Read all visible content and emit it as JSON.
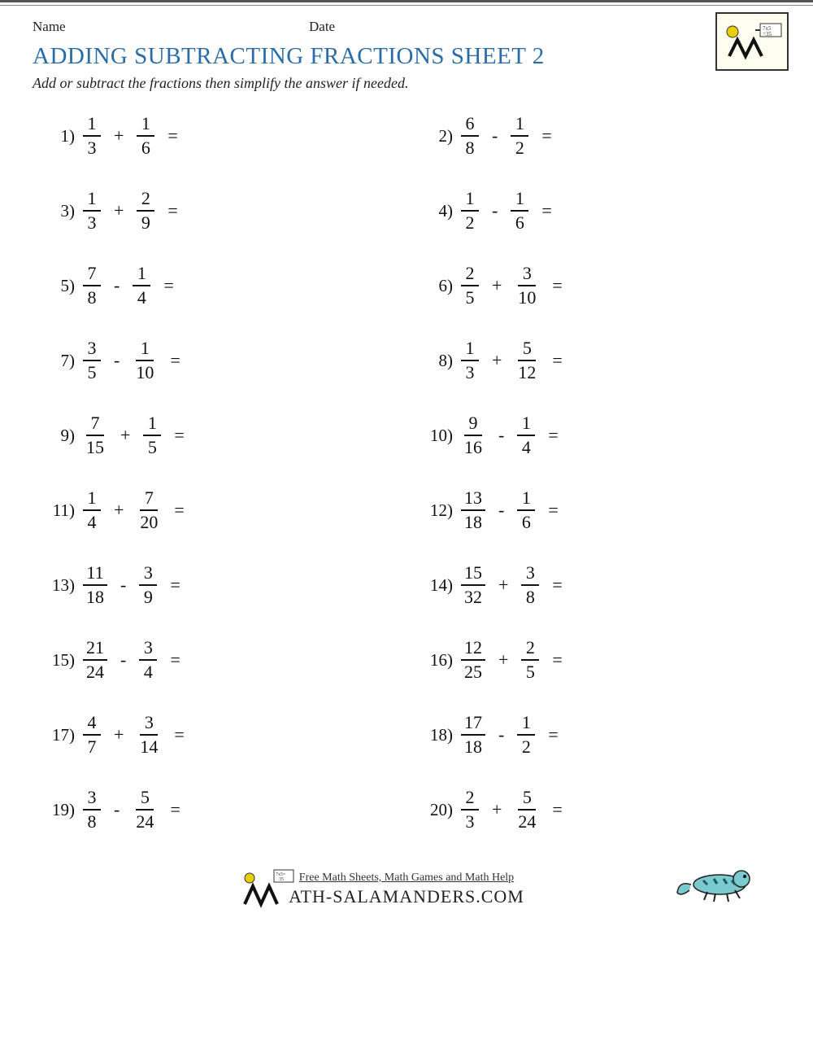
{
  "header": {
    "name_label": "Name",
    "date_label": "Date"
  },
  "title": "ADDING SUBTRACTING FRACTIONS SHEET 2",
  "instructions": "Add or subtract the fractions then simplify the answer if needed.",
  "problems": [
    {
      "n": "1)",
      "a_num": "1",
      "a_den": "3",
      "op": "+",
      "b_num": "1",
      "b_den": "6"
    },
    {
      "n": "2)",
      "a_num": "6",
      "a_den": "8",
      "op": "-",
      "b_num": "1",
      "b_den": "2"
    },
    {
      "n": "3)",
      "a_num": "1",
      "a_den": "3",
      "op": "+",
      "b_num": "2",
      "b_den": "9"
    },
    {
      "n": "4)",
      "a_num": "1",
      "a_den": "2",
      "op": "-",
      "b_num": "1",
      "b_den": "6"
    },
    {
      "n": "5)",
      "a_num": "7",
      "a_den": "8",
      "op": "-",
      "b_num": "1",
      "b_den": "4"
    },
    {
      "n": "6)",
      "a_num": "2",
      "a_den": "5",
      "op": "+",
      "b_num": "3",
      "b_den": "10"
    },
    {
      "n": "7)",
      "a_num": "3",
      "a_den": "5",
      "op": "-",
      "b_num": "1",
      "b_den": "10"
    },
    {
      "n": "8)",
      "a_num": "1",
      "a_den": "3",
      "op": "+",
      "b_num": "5",
      "b_den": "12"
    },
    {
      "n": "9)",
      "a_num": "7",
      "a_den": "15",
      "op": "+",
      "b_num": "1",
      "b_den": "5"
    },
    {
      "n": "10)",
      "a_num": "9",
      "a_den": "16",
      "op": "-",
      "b_num": "1",
      "b_den": "4"
    },
    {
      "n": "11)",
      "a_num": "1",
      "a_den": "4",
      "op": "+",
      "b_num": "7",
      "b_den": "20"
    },
    {
      "n": "12)",
      "a_num": "13",
      "a_den": "18",
      "op": "-",
      "b_num": "1",
      "b_den": "6"
    },
    {
      "n": "13)",
      "a_num": "11",
      "a_den": "18",
      "op": "-",
      "b_num": "3",
      "b_den": "9"
    },
    {
      "n": "14)",
      "a_num": "15",
      "a_den": "32",
      "op": "+",
      "b_num": "3",
      "b_den": "8"
    },
    {
      "n": "15)",
      "a_num": "21",
      "a_den": "24",
      "op": "-",
      "b_num": "3",
      "b_den": "4"
    },
    {
      "n": "16)",
      "a_num": "12",
      "a_den": "25",
      "op": "+",
      "b_num": "2",
      "b_den": "5"
    },
    {
      "n": "17)",
      "a_num": "4",
      "a_den": "7",
      "op": "+",
      "b_num": "3",
      "b_den": "14"
    },
    {
      "n": "18)",
      "a_num": "17",
      "a_den": "18",
      "op": "-",
      "b_num": "1",
      "b_den": "2"
    },
    {
      "n": "19)",
      "a_num": "3",
      "a_den": "8",
      "op": "-",
      "b_num": "5",
      "b_den": "24"
    },
    {
      "n": "20)",
      "a_num": "2",
      "a_den": "3",
      "op": "+",
      "b_num": "5",
      "b_den": "24"
    }
  ],
  "footer": {
    "line1": "Free Math Sheets, Math Games and Math Help",
    "brand": "ATH-SALAMANDERS.COM"
  },
  "colors": {
    "title": "#2a6ca8",
    "text": "#111111",
    "border": "#555555"
  }
}
